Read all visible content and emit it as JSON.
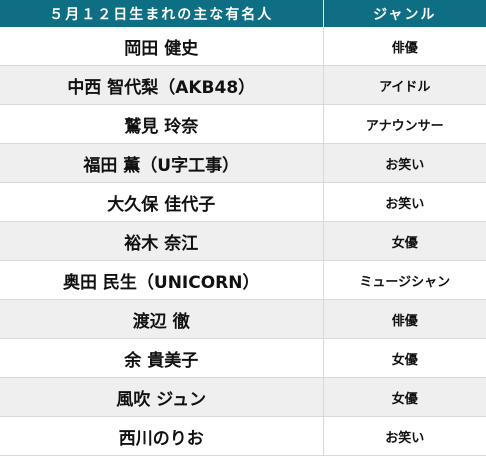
{
  "header": {
    "name_col": "５月１２日生まれの主な有名人",
    "genre_col": "ジャンル"
  },
  "rows": [
    {
      "name": "岡田 健史",
      "genre": "俳優"
    },
    {
      "name": "中西 智代梨（AKB48）",
      "genre": "アイドル"
    },
    {
      "name": "鷲見 玲奈",
      "genre": "アナウンサー"
    },
    {
      "name": "福田 薫（U字工事）",
      "genre": "お笑い"
    },
    {
      "name": "大久保 佳代子",
      "genre": "お笑い"
    },
    {
      "name": "裕木 奈江",
      "genre": "女優"
    },
    {
      "name": "奥田 民生（UNICORN）",
      "genre": "ミュージシャン"
    },
    {
      "name": "渡辺 徹",
      "genre": "俳優"
    },
    {
      "name": "余 貴美子",
      "genre": "女優"
    },
    {
      "name": "風吹 ジュン",
      "genre": "女優"
    },
    {
      "name": "西川のりお",
      "genre": "お笑い"
    }
  ],
  "colors": {
    "header_bg": "#0e6e84",
    "header_text": "#ffffff",
    "row_alt_bg": "#efefef",
    "row_bg": "#ffffff"
  }
}
